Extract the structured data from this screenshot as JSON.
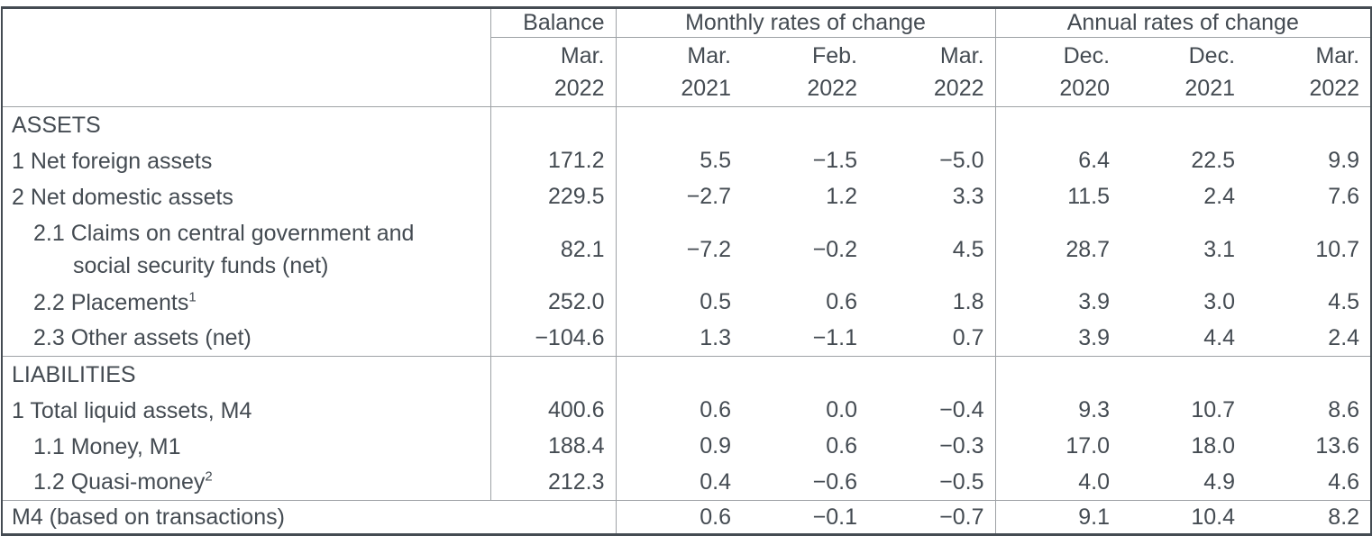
{
  "colors": {
    "text": "#444b52",
    "grid": "#9ea2a6",
    "border": "#444b52",
    "background": "#ffffff"
  },
  "header": {
    "balance_group": "Balance",
    "monthly_group": "Monthly rates of change",
    "annual_group": "Annual rates of change",
    "columns": [
      {
        "month": "Mar.",
        "year": "2022"
      },
      {
        "month": "Mar.",
        "year": "2021"
      },
      {
        "month": "Feb.",
        "year": "2022"
      },
      {
        "month": "Mar.",
        "year": "2022"
      },
      {
        "month": "Dec.",
        "year": "2020"
      },
      {
        "month": "Dec.",
        "year": "2021"
      },
      {
        "month": "Mar.",
        "year": "2022"
      }
    ]
  },
  "rows": [
    {
      "type": "section",
      "label": "ASSETS"
    },
    {
      "type": "item",
      "indent": 1,
      "label": "1 Net foreign assets",
      "balance": "171.2",
      "monthly": [
        "5.5",
        "−1.5",
        "−5.0"
      ],
      "annual": [
        "6.4",
        "22.5",
        "9.9"
      ]
    },
    {
      "type": "item",
      "indent": 1,
      "label": "2 Net domestic assets",
      "balance": "229.5",
      "monthly": [
        "−2.7",
        "1.2",
        "3.3"
      ],
      "annual": [
        "11.5",
        "2.4",
        "7.6"
      ]
    },
    {
      "type": "item",
      "indent": 2,
      "label": "2.1 Claims on central government and",
      "label_line2": "social security funds (net)",
      "balance": "82.1",
      "monthly": [
        "−7.2",
        "−0.2",
        "4.5"
      ],
      "annual": [
        "28.7",
        "3.1",
        "10.7"
      ]
    },
    {
      "type": "item",
      "indent": 2,
      "label": "2.2 Placements",
      "footnote": "1",
      "balance": "252.0",
      "monthly": [
        "0.5",
        "0.6",
        "1.8"
      ],
      "annual": [
        "3.9",
        "3.0",
        "4.5"
      ]
    },
    {
      "type": "item",
      "indent": 2,
      "label": "2.3 Other assets (net)",
      "balance": "−104.6",
      "monthly": [
        "1.3",
        "−1.1",
        "0.7"
      ],
      "annual": [
        "3.9",
        "4.4",
        "2.4"
      ],
      "section_end": true
    },
    {
      "type": "section",
      "label": "LIABILITIES"
    },
    {
      "type": "item",
      "indent": 1,
      "label": "1 Total liquid assets, M4",
      "balance": "400.6",
      "monthly": [
        "0.6",
        "0.0",
        "−0.4"
      ],
      "annual": [
        "9.3",
        "10.7",
        "8.6"
      ]
    },
    {
      "type": "item",
      "indent": 2,
      "label": "1.1 Money, M1",
      "balance": "188.4",
      "monthly": [
        "0.9",
        "0.6",
        "−0.3"
      ],
      "annual": [
        "17.0",
        "18.0",
        "13.6"
      ]
    },
    {
      "type": "item",
      "indent": 2,
      "label": "1.2 Quasi-money",
      "footnote": "2",
      "balance": "212.3",
      "monthly": [
        "0.4",
        "−0.6",
        "−0.5"
      ],
      "annual": [
        "4.0",
        "4.9",
        "4.6"
      ],
      "section_end": true
    },
    {
      "type": "total",
      "label": "M4 (based on transactions)",
      "monthly": [
        "0.6",
        "−0.1",
        "−0.7"
      ],
      "annual": [
        "9.1",
        "10.4",
        "8.2"
      ]
    }
  ]
}
